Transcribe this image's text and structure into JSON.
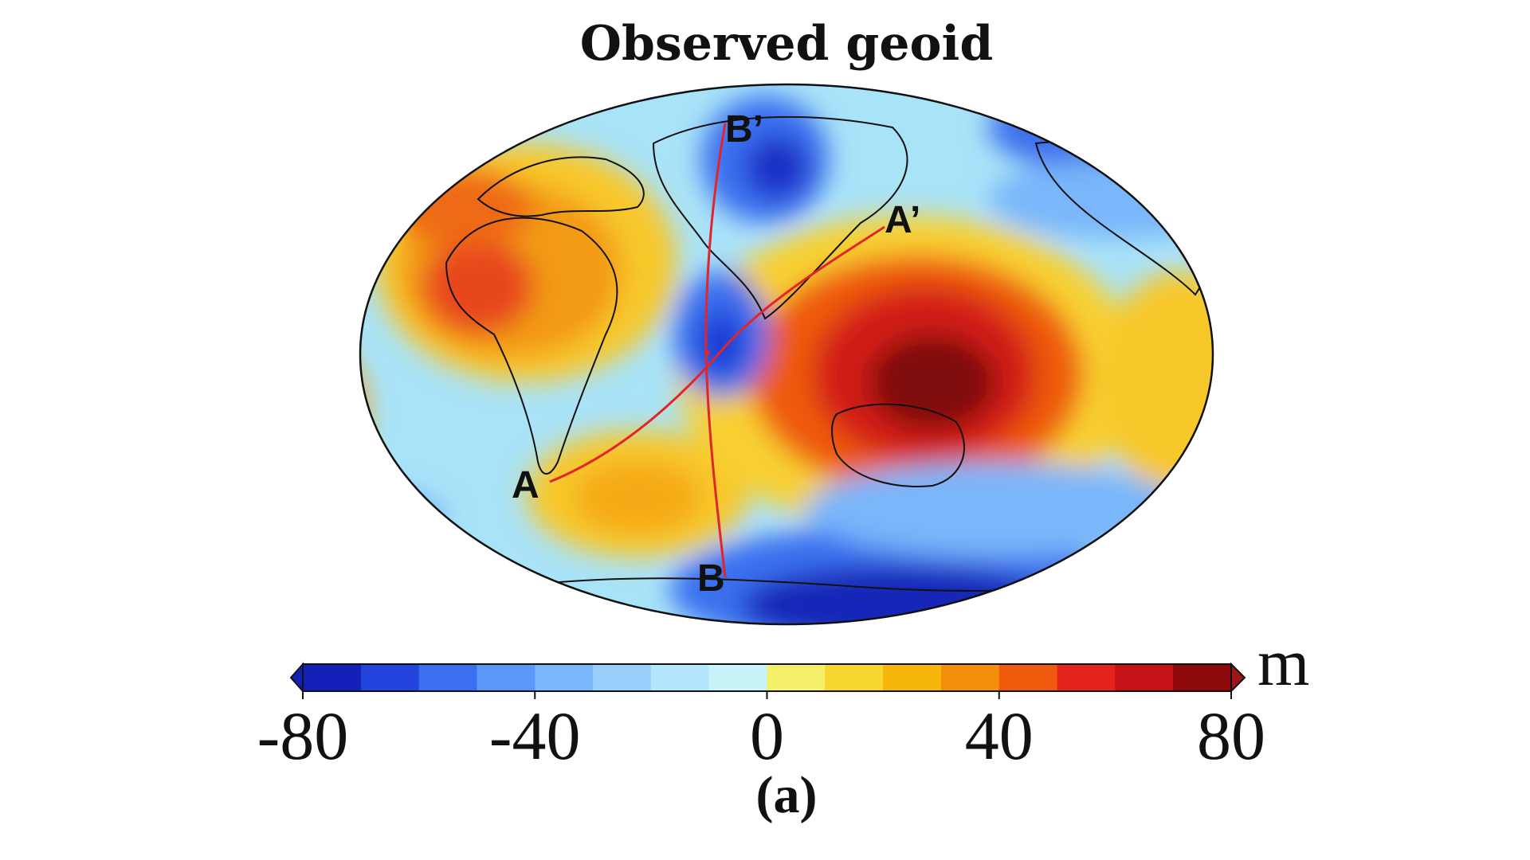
{
  "figure": {
    "title": "Observed geoid",
    "panel_label": "(a)"
  },
  "map": {
    "projection": "Hammer",
    "field": "geoid height",
    "profile_points": [
      {
        "label": "A",
        "lon": 20,
        "lat": -32
      },
      {
        "label": "A’",
        "lon": 140,
        "lat": 38
      },
      {
        "label": "B",
        "lon": 68,
        "lat": -70
      },
      {
        "label": "B’",
        "lon": 66,
        "lat": 70
      }
    ],
    "profile_line_color": "#e0262a"
  },
  "colorbar": {
    "unit": "m",
    "min": -80,
    "max": 80,
    "tick_labels": [
      "-80",
      "-40",
      "0",
      "40",
      "80"
    ],
    "colors": [
      "#1220b8",
      "#2243dc",
      "#3a6ff0",
      "#5b97f7",
      "#79b6fa",
      "#98d0fb",
      "#b5e6fd",
      "#c8f3f8",
      "#f4f06a",
      "#f8d630",
      "#f7b60c",
      "#f38f0a",
      "#ef5a0d",
      "#e4231a",
      "#c51217",
      "#8e0a0a"
    ]
  }
}
